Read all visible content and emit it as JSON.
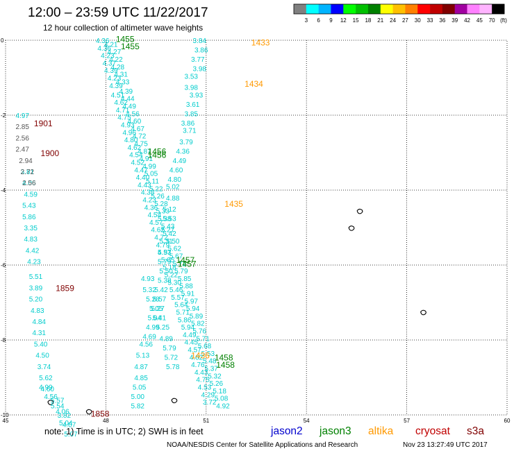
{
  "header": {
    "title": "12:00 – 23:59 UTC 11/22/2017",
    "subtitle": "12 hour collection of altimeter wave heights"
  },
  "colorbar": {
    "labels": [
      "3",
      "6",
      "9",
      "12",
      "15",
      "18",
      "21",
      "24",
      "27",
      "30",
      "33",
      "36",
      "39",
      "42",
      "45",
      "70"
    ],
    "unit": "(ft)",
    "colors": [
      "#808080",
      "#00ffff",
      "#00b4ff",
      "#0000ff",
      "#00ff00",
      "#00c000",
      "#008000",
      "#ffff00",
      "#ffc000",
      "#ff8000",
      "#ff0000",
      "#c00000",
      "#800000",
      "#a000a0",
      "#ff80ff",
      "#ffb4ff",
      "#000000"
    ]
  },
  "footer": {
    "note": "note:  1) Time is in UTC;  2) SWH is in feet",
    "satellites": [
      {
        "name": "jason2",
        "color": "#0000cd"
      },
      {
        "name": "jason3",
        "color": "#008000"
      },
      {
        "name": "altika",
        "color": "#ff9900"
      },
      {
        "name": "cryosat",
        "color": "#c00000"
      },
      {
        "name": "s3a",
        "color": "#800000"
      }
    ],
    "credit": "NOAA/NESDIS Center for Satellite Applications and Research",
    "timestamp": "Nov 23 13:27:49 UTC 2017"
  },
  "chart_data": {
    "type": "scatter",
    "title": "12:00 – 23:59 UTC 11/22/2017",
    "subtitle": "12 hour collection of altimeter wave heights",
    "xlim": [
      45,
      60
    ],
    "ylim": [
      -10,
      0
    ],
    "x_ticks": [
      "45",
      "48",
      "51",
      "54",
      "57",
      "60"
    ],
    "y_ticks": [
      "0",
      "-2",
      "-4",
      "-6",
      "-8",
      "-10"
    ],
    "grid": true,
    "colors": {
      "cyan": "#00cccc",
      "gray": "#555555",
      "dark": "#333333",
      "lightgreen": "#99cc33"
    },
    "tracks": [
      {
        "color": "cyan",
        "points": [
          [
            50.6,
            0
          ],
          [
            50.65,
            -0.25
          ],
          [
            50.55,
            -0.5
          ],
          [
            50.6,
            -0.75
          ],
          [
            50.35,
            -0.95
          ],
          [
            50.35,
            -1.25
          ],
          [
            50.5,
            -1.45
          ],
          [
            50.4,
            -1.7
          ],
          [
            50.35,
            -1.95
          ],
          [
            50.25,
            -2.2
          ],
          [
            50.3,
            -2.4
          ],
          [
            50.2,
            -2.7
          ],
          [
            50.1,
            -2.95
          ],
          [
            50.0,
            -3.2
          ],
          [
            49.9,
            -3.45
          ],
          [
            49.85,
            -3.7
          ],
          [
            49.8,
            -3.9
          ],
          [
            49.8,
            -4.2
          ],
          [
            49.7,
            -4.5
          ],
          [
            49.7,
            -4.75
          ],
          [
            49.65,
            -5.05
          ],
          [
            49.6,
            -5.35
          ],
          [
            49.55,
            -5.65
          ],
          [
            49.55,
            -5.9
          ],
          [
            49.6,
            -6.15
          ],
          [
            49.55,
            -6.4
          ],
          [
            49.45,
            -6.65
          ],
          [
            49.4,
            -6.9
          ],
          [
            49.35,
            -7.15
          ],
          [
            49.25,
            -7.4
          ],
          [
            49.2,
            -7.65
          ],
          [
            49.1,
            -7.9
          ],
          [
            49.0,
            -8.1
          ],
          [
            48.9,
            -8.4
          ],
          [
            48.85,
            -8.7
          ],
          [
            48.85,
            -9.0
          ],
          [
            48.8,
            -9.25
          ],
          [
            48.75,
            -9.5
          ],
          [
            48.75,
            -9.75
          ]
        ],
        "values": [
          3.84,
          3.86,
          3.77,
          3.98,
          3.53,
          3.98,
          3.93,
          3.61,
          3.85,
          3.86,
          3.71,
          3.79,
          4.36,
          4.49,
          4.6,
          4.8,
          5.02,
          4.88,
          5.12,
          5.53,
          5.27,
          5.31,
          5.57,
          5.79,
          5.5,
          5.38,
          5.42,
          5.57,
          5.27,
          5.04,
          4.99,
          4.69,
          4.56,
          5.13,
          4.87,
          4.85,
          5.05,
          5.0,
          5.82
        ]
      },
      {
        "color": "cyan",
        "points": [
          [
            47.7,
            0
          ],
          [
            47.75,
            -0.2
          ],
          [
            47.85,
            -0.4
          ],
          [
            47.9,
            -0.6
          ],
          [
            47.95,
            -0.8
          ],
          [
            48.05,
            -1.0
          ],
          [
            48.1,
            -1.2
          ],
          [
            48.15,
            -1.45
          ],
          [
            48.25,
            -1.65
          ],
          [
            48.3,
            -1.85
          ],
          [
            48.35,
            -2.05
          ],
          [
            48.45,
            -2.25
          ],
          [
            48.5,
            -2.45
          ],
          [
            48.55,
            -2.65
          ],
          [
            48.65,
            -2.85
          ],
          [
            48.7,
            -3.05
          ],
          [
            48.75,
            -3.25
          ],
          [
            48.85,
            -3.45
          ],
          [
            48.9,
            -3.65
          ],
          [
            48.95,
            -3.85
          ],
          [
            49.05,
            -4.05
          ],
          [
            49.1,
            -4.25
          ],
          [
            49.15,
            -4.45
          ],
          [
            49.25,
            -4.65
          ],
          [
            49.3,
            -4.85
          ],
          [
            49.35,
            -5.05
          ],
          [
            49.45,
            -5.25
          ],
          [
            49.5,
            -5.45
          ],
          [
            49.55,
            -5.65
          ],
          [
            49.65,
            -5.85
          ],
          [
            49.7,
            -6.05
          ],
          [
            49.75,
            -6.25
          ],
          [
            49.85,
            -6.45
          ],
          [
            49.9,
            -6.65
          ],
          [
            49.95,
            -6.85
          ],
          [
            50.05,
            -7.05
          ],
          [
            50.1,
            -7.25
          ],
          [
            50.15,
            -7.45
          ],
          [
            50.25,
            -7.65
          ],
          [
            50.3,
            -7.85
          ],
          [
            50.35,
            -8.05
          ],
          [
            50.45,
            -8.25
          ],
          [
            50.5,
            -8.45
          ],
          [
            50.55,
            -8.65
          ],
          [
            50.65,
            -8.85
          ],
          [
            50.7,
            -9.05
          ],
          [
            50.75,
            -9.25
          ],
          [
            50.85,
            -9.45
          ],
          [
            50.9,
            -9.65
          ]
        ],
        "values": [
          4.36,
          4.36,
          4.23,
          4.37,
          4.39,
          4.23,
          4.39,
          4.51,
          4.62,
          4.71,
          4.75,
          4.93,
          4.96,
          4.8,
          4.62,
          4.54,
          4.52,
          4.47,
          4.4,
          4.43,
          4.38,
          4.23,
          4.36,
          4.54,
          4.57,
          4.62,
          4.72,
          4.79,
          4.93,
          5.05,
          5.18,
          5.22,
          5.3,
          5.46,
          5.57,
          5.64,
          5.71,
          5.86,
          5.94,
          4.49,
          4.45,
          4.57,
          4.62,
          4.76,
          4.43,
          4.75,
          4.53,
          4.29,
          3.72
        ]
      },
      {
        "color": "cyan",
        "points": [
          [
            47.95,
            -0.1
          ],
          [
            48.05,
            -0.3
          ],
          [
            48.1,
            -0.5
          ],
          [
            48.15,
            -0.7
          ],
          [
            48.25,
            -0.9
          ],
          [
            48.3,
            -1.1
          ],
          [
            48.4,
            -1.35
          ],
          [
            48.45,
            -1.55
          ],
          [
            48.5,
            -1.75
          ],
          [
            48.6,
            -1.95
          ],
          [
            48.65,
            -2.15
          ],
          [
            48.75,
            -2.35
          ],
          [
            48.8,
            -2.55
          ],
          [
            48.85,
            -2.75
          ],
          [
            48.95,
            -2.95
          ],
          [
            49.0,
            -3.15
          ],
          [
            49.1,
            -3.35
          ],
          [
            49.15,
            -3.55
          ],
          [
            49.2,
            -3.75
          ],
          [
            49.3,
            -3.95
          ],
          [
            49.35,
            -4.15
          ],
          [
            49.45,
            -4.35
          ],
          [
            49.5,
            -4.55
          ],
          [
            49.55,
            -4.75
          ],
          [
            49.65,
            -4.95
          ],
          [
            49.7,
            -5.15
          ],
          [
            49.8,
            -5.35
          ],
          [
            49.85,
            -5.55
          ],
          [
            49.9,
            -5.75
          ],
          [
            50.0,
            -5.95
          ],
          [
            50.05,
            -6.15
          ],
          [
            50.15,
            -6.35
          ],
          [
            50.2,
            -6.55
          ],
          [
            50.25,
            -6.75
          ],
          [
            50.35,
            -6.95
          ],
          [
            50.4,
            -7.15
          ],
          [
            50.5,
            -7.35
          ],
          [
            50.55,
            -7.55
          ],
          [
            50.6,
            -7.75
          ],
          [
            50.7,
            -7.95
          ],
          [
            50.75,
            -8.15
          ],
          [
            50.85,
            -8.35
          ],
          [
            50.9,
            -8.55
          ],
          [
            50.95,
            -8.75
          ],
          [
            51.05,
            -8.95
          ],
          [
            51.1,
            -9.15
          ],
          [
            51.2,
            -9.35
          ],
          [
            51.25,
            -9.55
          ],
          [
            51.3,
            -9.75
          ]
        ],
        "values": [
          4.21,
          4.27,
          4.22,
          4.28,
          4.31,
          4.33,
          4.39,
          4.44,
          4.49,
          4.56,
          4.6,
          4.67,
          4.72,
          4.75,
          4.87,
          4.91,
          4.99,
          5.05,
          5.11,
          5.22,
          5.26,
          5.28,
          5.33,
          5.38,
          5.43,
          5.42,
          5.5,
          5.62,
          5.67,
          5.72,
          5.79,
          5.85,
          5.88,
          5.91,
          5.97,
          5.94,
          5.89,
          5.82,
          5.76,
          5.71,
          5.68,
          5.53,
          5.48,
          5.37,
          5.32,
          5.26,
          5.18,
          5.08,
          4.92
        ]
      },
      {
        "color": "cyan",
        "points": [
          [
            45.3,
            -2.0
          ],
          [
            45.45,
            -3.5
          ],
          [
            45.5,
            -3.8
          ],
          [
            45.55,
            -4.1
          ],
          [
            45.5,
            -4.4
          ],
          [
            45.5,
            -4.7
          ],
          [
            45.55,
            -5.0
          ],
          [
            45.55,
            -5.3
          ],
          [
            45.6,
            -5.6
          ],
          [
            45.65,
            -5.9
          ],
          [
            45.7,
            -6.3
          ],
          [
            45.7,
            -6.6
          ],
          [
            45.7,
            -6.9
          ],
          [
            45.75,
            -7.2
          ],
          [
            45.8,
            -7.5
          ],
          [
            45.8,
            -7.8
          ],
          [
            45.85,
            -8.1
          ],
          [
            45.9,
            -8.4
          ],
          [
            45.95,
            -8.7
          ],
          [
            46.0,
            -9.0
          ],
          [
            46.05,
            -9.3
          ],
          [
            46.35,
            -9.6
          ],
          [
            46.5,
            -9.9
          ],
          [
            46.6,
            -10.2
          ]
        ],
        "values": [
          4.97,
          3.81,
          4.06,
          4.59,
          5.43,
          5.86,
          3.35,
          4.83,
          4.42,
          4.23,
          5.51,
          3.89,
          5.2,
          4.83,
          4.84,
          4.31,
          5.4,
          4.5,
          3.74,
          5.62,
          4.6,
          5.57,
          4.06,
          5.04
        ]
      },
      {
        "color": "cyan",
        "points": [
          [
            46.0,
            -9.25
          ],
          [
            46.15,
            -9.5
          ],
          [
            46.35,
            -9.75
          ],
          [
            46.55,
            -10.0
          ],
          [
            46.7,
            -10.25
          ],
          [
            46.75,
            -10.5
          ]
        ],
        "values": [
          4.99,
          4.56,
          5.54,
          3.82,
          4.07,
          5.07
        ]
      },
      {
        "color": "gray",
        "points": [
          [
            45.3,
            -2.3
          ],
          [
            45.3,
            -2.6
          ],
          [
            45.3,
            -2.9
          ],
          [
            45.4,
            -3.2
          ],
          [
            45.45,
            -3.5
          ],
          [
            45.5,
            -3.8
          ]
        ],
        "values": [
          2.85,
          2.56,
          2.47,
          2.94,
          2.72,
          2.56
        ]
      },
      {
        "color": "cyan",
        "points": [
          [
            49.05,
            -6.35
          ],
          [
            49.1,
            -6.65
          ],
          [
            49.2,
            -6.9
          ],
          [
            49.3,
            -7.15
          ],
          [
            49.4,
            -7.4
          ],
          [
            49.5,
            -7.65
          ],
          [
            49.6,
            -7.95
          ],
          [
            49.7,
            -8.2
          ],
          [
            49.75,
            -8.45
          ],
          [
            49.8,
            -8.7
          ]
        ],
        "values": [
          4.93,
          5.32,
          5.28,
          5.05,
          5.41,
          5.25,
          4.89,
          5.79,
          5.72,
          5.78
        ]
      }
    ],
    "pass_labels": [
      {
        "text": "1455",
        "x": 48.3,
        "y": 0.05,
        "color": "#008000"
      },
      {
        "text": "1455",
        "x": 48.45,
        "y": -0.15,
        "color": "#008000"
      },
      {
        "text": "1433",
        "x": 52.35,
        "y": -0.05,
        "color": "#ff9900"
      },
      {
        "text": "1434",
        "x": 52.15,
        "y": -1.15,
        "color": "#ff9900"
      },
      {
        "text": "1901",
        "x": 45.85,
        "y": -2.2,
        "color": "#800000"
      },
      {
        "text": "1900",
        "x": 46.05,
        "y": -3.0,
        "color": "#800000"
      },
      {
        "text": "1456",
        "x": 49.25,
        "y": -2.95,
        "color": "#008000"
      },
      {
        "text": "1456",
        "x": 49.25,
        "y": -3.05,
        "color": "#008000"
      },
      {
        "text": "1435",
        "x": 51.55,
        "y": -4.35,
        "color": "#ff9900"
      },
      {
        "text": "1457",
        "x": 50.1,
        "y": -5.85,
        "color": "#008000"
      },
      {
        "text": "1457",
        "x": 50.15,
        "y": -5.95,
        "color": "#008000"
      },
      {
        "text": "1859",
        "x": 46.5,
        "y": -6.6,
        "color": "#800000"
      },
      {
        "text": "1436",
        "x": 50.55,
        "y": -8.4,
        "color": "#ff9900"
      },
      {
        "text": "1458",
        "x": 51.25,
        "y": -8.45,
        "color": "#008000"
      },
      {
        "text": "1458",
        "x": 51.3,
        "y": -8.65,
        "color": "#008000"
      },
      {
        "text": "1858",
        "x": 47.55,
        "y": -9.95,
        "color": "#800000"
      }
    ],
    "islands": [
      {
        "x": 55.6,
        "y": -4.55
      },
      {
        "x": 55.35,
        "y": -5.0
      },
      {
        "x": 57.5,
        "y": -7.25
      },
      {
        "x": 46.35,
        "y": -9.65
      },
      {
        "x": 47.5,
        "y": -9.9
      },
      {
        "x": 50.05,
        "y": -9.6
      }
    ]
  }
}
